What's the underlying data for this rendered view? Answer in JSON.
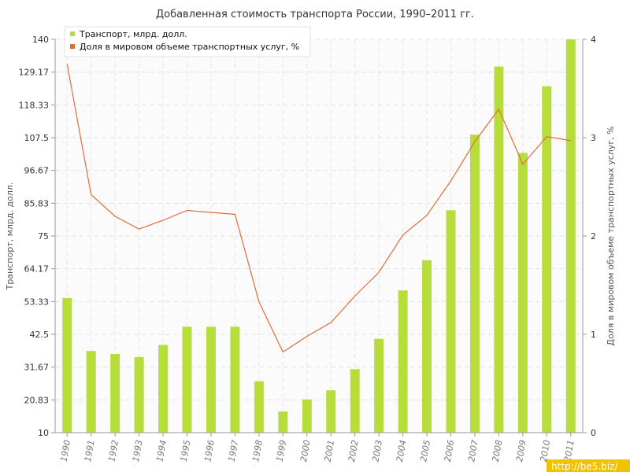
{
  "chart_data": {
    "type": "bar",
    "title": "Добавленная стоимость транспорта России, 1990–2011 гг.",
    "ylabel": "Транспорт, млрд. долл.",
    "y2label": "Доля в мировом объеме транспортных услуг, %",
    "categories": [
      "1990",
      "1991",
      "1992",
      "1993",
      "1994",
      "1995",
      "1996",
      "1997",
      "1998",
      "1999",
      "2000",
      "2001",
      "2002",
      "2003",
      "2004",
      "2005",
      "2006",
      "2007",
      "2008",
      "2009",
      "2010",
      "2011"
    ],
    "ylim": [
      10,
      140
    ],
    "y_ticks": [
      "10",
      "20.83",
      "31.67",
      "42.5",
      "53.33",
      "64.17",
      "75",
      "85.83",
      "96.67",
      "107.5",
      "118.33",
      "129.17",
      "140"
    ],
    "y2lim": [
      0,
      4
    ],
    "y2_ticks": [
      "0",
      "1",
      "2",
      "3",
      "4"
    ],
    "grid": true,
    "legend_position": "top-left",
    "series": [
      {
        "name": "Транспорт, млрд. долл.",
        "type": "bar",
        "axis": "left",
        "color": "#b7dd3c",
        "values": [
          54.5,
          37,
          36,
          35,
          39,
          45,
          45,
          45,
          27,
          17,
          21,
          24,
          31,
          41,
          57,
          67,
          83.5,
          108.5,
          131,
          102.5,
          124.5,
          140
        ]
      },
      {
        "name": "Доля в мировом объеме транспортных услуг, %",
        "type": "line",
        "axis": "right",
        "color": "#e06c3a",
        "values": [
          3.75,
          2.42,
          2.2,
          2.07,
          2.16,
          2.26,
          2.24,
          2.22,
          1.33,
          0.82,
          0.98,
          1.12,
          1.39,
          1.63,
          2.01,
          2.21,
          2.56,
          2.96,
          3.29,
          2.73,
          3.01,
          2.97
        ]
      }
    ]
  },
  "watermark": "http://be5.biz/"
}
